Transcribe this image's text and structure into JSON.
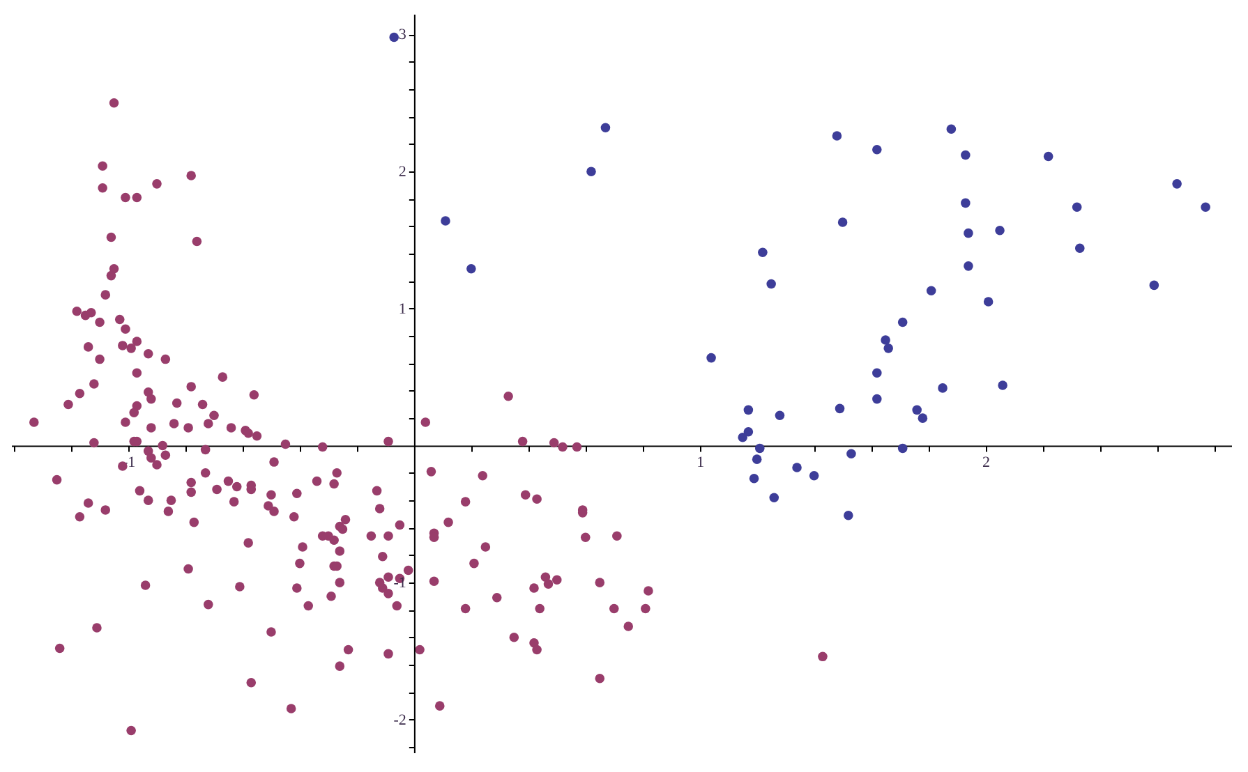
{
  "chart_data": {
    "type": "scatter",
    "marker": "circle",
    "grid": false,
    "xlim": [
      -1.41,
      2.86
    ],
    "ylim": [
      -2.24,
      3.15
    ],
    "xticks": [
      {
        "value": -1.4,
        "label": null
      },
      {
        "value": -1.2,
        "label": null
      },
      -1,
      {
        "value": -0.8,
        "label": null
      },
      {
        "value": -0.6,
        "label": null
      },
      {
        "value": -0.4,
        "label": null
      },
      {
        "value": -0.2,
        "label": null
      },
      {
        "value": 0.2,
        "label": null
      },
      {
        "value": 0.4,
        "label": null
      },
      {
        "value": 0.6,
        "label": null
      },
      {
        "value": 0.8,
        "label": null
      },
      1,
      {
        "value": 1.2,
        "label": null
      },
      {
        "value": 1.4,
        "label": null
      },
      {
        "value": 1.6,
        "label": null
      },
      {
        "value": 1.8,
        "label": null
      },
      2,
      {
        "value": 2.2,
        "label": null
      },
      {
        "value": 2.4,
        "label": null
      },
      {
        "value": 2.6,
        "label": null
      },
      {
        "value": 2.8,
        "label": null
      }
    ],
    "yticks": [
      {
        "value": -2.2,
        "label": null
      },
      -2,
      {
        "value": -1.8,
        "label": null
      },
      {
        "value": -1.6,
        "label": null
      },
      {
        "value": -1.4,
        "label": null
      },
      {
        "value": -1.2,
        "label": null
      },
      -1,
      {
        "value": -0.8,
        "label": null
      },
      {
        "value": -0.6,
        "label": null
      },
      {
        "value": -0.4,
        "label": null
      },
      {
        "value": -0.2,
        "label": null
      },
      {
        "value": 0.2,
        "label": null
      },
      {
        "value": 0.4,
        "label": null
      },
      {
        "value": 0.6,
        "label": null
      },
      {
        "value": 0.8,
        "label": null
      },
      1,
      {
        "value": 1.2,
        "label": null
      },
      {
        "value": 1.4,
        "label": null
      },
      {
        "value": 1.6,
        "label": null
      },
      {
        "value": 1.8,
        "label": null
      },
      2,
      {
        "value": 2.2,
        "label": null
      },
      {
        "value": 2.4,
        "label": null
      },
      {
        "value": 2.6,
        "label": null
      },
      {
        "value": 2.8,
        "label": null
      },
      3
    ],
    "series": [
      {
        "color": "#3d3d99",
        "x": [
          -0.07,
          0.11,
          0.2,
          0.62,
          0.67,
          1.48,
          1.88,
          1.62,
          1.93,
          2.22,
          2.67,
          2.77,
          2.32,
          1.93,
          1.5,
          1.94,
          2.05,
          2.33,
          1.22,
          1.94,
          1.25,
          2.59,
          1.81,
          2.01,
          1.71,
          1.65,
          1.66,
          1.04,
          1.62,
          1.85,
          2.06,
          1.17,
          1.49,
          1.62,
          1.76,
          1.78,
          1.28,
          1.17,
          1.15,
          1.21,
          1.71,
          1.53,
          1.2,
          1.34,
          1.4,
          1.19,
          1.26,
          1.52
        ],
        "values": [
          2.98,
          1.64,
          1.29,
          2.0,
          2.32,
          2.26,
          2.31,
          2.16,
          2.12,
          2.11,
          1.91,
          1.74,
          1.74,
          1.77,
          1.63,
          1.55,
          1.57,
          1.44,
          1.41,
          1.31,
          1.18,
          1.17,
          1.13,
          1.05,
          0.9,
          0.77,
          0.71,
          0.64,
          0.53,
          0.42,
          0.44,
          0.26,
          0.27,
          0.34,
          0.26,
          0.2,
          0.22,
          0.1,
          0.06,
          -0.02,
          -0.02,
          -0.06,
          -0.1,
          -0.16,
          -0.22,
          -0.24,
          -0.38,
          -0.51
        ]
      },
      {
        "color": "#993d6b",
        "x": [
          1.43,
          0.33,
          0.04,
          -0.09,
          0.38,
          0.49,
          0.52,
          0.57,
          0.06,
          0.24,
          0.18,
          0.39,
          0.43,
          0.59,
          0.59,
          0.12,
          -0.05,
          0.07,
          0.07,
          -0.09,
          0.6,
          0.71,
          0.25,
          -0.11,
          0.21,
          -0.02,
          0.46,
          0.5,
          0.47,
          0.07,
          -0.09,
          -0.05,
          -0.11,
          -0.09,
          0.42,
          0.65,
          0.82,
          -0.06,
          0.18,
          0.29,
          0.44,
          0.7,
          0.81,
          0.75,
          0.35,
          0.42,
          0.43,
          0.02,
          -0.09,
          0.65,
          0.09,
          -1.05,
          -1.09,
          -1.09,
          -1.01,
          -0.97,
          -0.9,
          -0.78,
          -1.06,
          -0.76,
          -1.05,
          -1.06,
          -1.08,
          -1.18,
          -1.15,
          -1.13,
          -1.1,
          -1.03,
          -1.01,
          -1.14,
          -1.02,
          -0.99,
          -0.97,
          -0.93,
          -1.1,
          -0.87,
          -0.97,
          -0.67,
          -1.12,
          -0.78,
          -0.93,
          -1.17,
          -0.56,
          -0.92,
          -1.21,
          -0.97,
          -0.83,
          -0.74,
          -0.98,
          -0.7,
          -1.33,
          -1.01,
          -0.84,
          -0.72,
          -0.92,
          -0.79,
          -0.64,
          -0.59,
          -0.58,
          -0.55,
          -1.12,
          -0.98,
          -0.97,
          -0.45,
          -0.32,
          -0.88,
          -0.93,
          -0.73,
          -0.87,
          -0.92,
          -0.9,
          -1.02,
          -0.49,
          -1.25,
          -0.73,
          -0.27,
          -0.78,
          -0.65,
          -0.62,
          -0.57,
          -0.57,
          -0.34,
          -0.28,
          -0.13,
          -0.96,
          -0.78,
          -0.69,
          -0.5,
          -0.41,
          -1.14,
          -0.93,
          -0.85,
          -0.63,
          -1.08,
          -0.86,
          -0.51,
          -0.49,
          -0.12,
          -1.17,
          -0.42,
          -0.77,
          -0.24,
          -0.26,
          -0.25,
          -0.32,
          -0.3,
          -0.28,
          -0.15,
          -0.58,
          -0.39,
          -0.26,
          -0.4,
          -0.28,
          -0.27,
          -0.79,
          -0.26,
          -0.12,
          -0.94,
          -0.61,
          -0.41,
          -0.29,
          -0.72,
          -0.37,
          -1.11,
          -0.5,
          -1.24,
          -0.23,
          -0.26,
          -0.57,
          -0.43,
          -0.99
        ],
        "values": [
          -1.54,
          0.36,
          0.17,
          0.03,
          0.03,
          0.02,
          -0.01,
          -0.01,
          -0.19,
          -0.22,
          -0.41,
          -0.36,
          -0.39,
          -0.47,
          -0.49,
          -0.56,
          -0.58,
          -0.64,
          -0.67,
          -0.66,
          -0.67,
          -0.66,
          -0.74,
          -0.81,
          -0.86,
          -0.91,
          -0.96,
          -0.98,
          -1.01,
          -0.99,
          -0.96,
          -0.97,
          -1.04,
          -1.08,
          -1.04,
          -1.0,
          -1.06,
          -1.17,
          -1.19,
          -1.11,
          -1.19,
          -1.19,
          -1.19,
          -1.32,
          -1.4,
          -1.44,
          -1.49,
          -1.49,
          -1.52,
          -1.7,
          -1.9,
          2.5,
          2.04,
          1.88,
          1.81,
          1.81,
          1.91,
          1.97,
          1.52,
          1.49,
          1.29,
          1.24,
          1.1,
          0.98,
          0.95,
          0.97,
          0.9,
          0.92,
          0.85,
          0.72,
          0.73,
          0.71,
          0.76,
          0.67,
          0.63,
          0.63,
          0.53,
          0.5,
          0.45,
          0.43,
          0.39,
          0.38,
          0.37,
          0.34,
          0.3,
          0.29,
          0.31,
          0.3,
          0.24,
          0.22,
          0.17,
          0.17,
          0.16,
          0.16,
          0.13,
          0.13,
          0.13,
          0.11,
          0.09,
          0.07,
          0.02,
          0.03,
          0.03,
          0.01,
          -0.01,
          0.0,
          -0.04,
          -0.03,
          -0.07,
          -0.09,
          -0.14,
          -0.15,
          -0.12,
          -0.25,
          -0.2,
          -0.2,
          -0.27,
          -0.26,
          -0.3,
          -0.29,
          -0.32,
          -0.26,
          -0.28,
          -0.33,
          -0.33,
          -0.34,
          -0.32,
          -0.36,
          -0.35,
          -0.42,
          -0.4,
          -0.4,
          -0.41,
          -0.47,
          -0.48,
          -0.44,
          -0.48,
          -0.46,
          -0.52,
          -0.52,
          -0.56,
          -0.54,
          -0.59,
          -0.61,
          -0.66,
          -0.66,
          -0.69,
          -0.66,
          -0.71,
          -0.74,
          -0.77,
          -0.86,
          -0.88,
          -0.88,
          -0.9,
          -1.0,
          -1.0,
          -1.02,
          -1.03,
          -1.04,
          -1.1,
          -1.16,
          -1.17,
          -1.33,
          -1.36,
          -1.48,
          -1.49,
          -1.61,
          -1.73,
          -1.92,
          -2.08
        ]
      }
    ]
  }
}
